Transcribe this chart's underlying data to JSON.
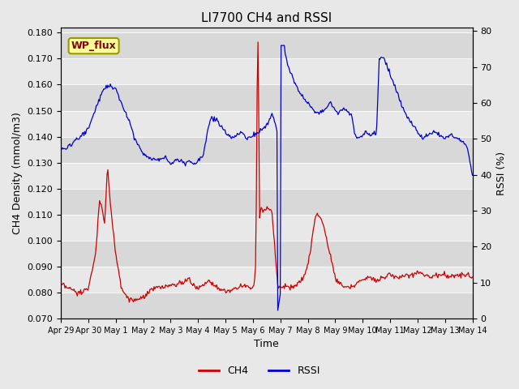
{
  "title": "LI7700 CH4 and RSSI",
  "xlabel": "Time",
  "ylabel_left": "CH4 Density (mmol/m3)",
  "ylabel_right": "RSSI (%)",
  "annotation": "WP_flux",
  "ylim_left": [
    0.07,
    0.182
  ],
  "ylim_right": [
    0,
    81
  ],
  "ch4_color": "#cc0000",
  "rssi_color": "#0000cc",
  "fig_facecolor": "#e8e8e8",
  "ax_facecolor": "#e0e0e0",
  "grid_color": "#ffffff",
  "x_tick_labels": [
    "Apr 29",
    "Apr 30",
    "May 1",
    "May 2",
    "May 3",
    "May 4",
    "May 5",
    "May 6",
    "May 7",
    "May 8",
    "May 9",
    "May 10",
    "May 11",
    "May 12",
    "May 13",
    "May 14"
  ],
  "x_tick_positions": [
    0,
    1,
    2,
    3,
    4,
    5,
    6,
    7,
    8,
    9,
    10,
    11,
    12,
    13,
    14,
    15
  ],
  "rssi_knots_x": [
    0,
    0.3,
    0.6,
    0.9,
    1.0,
    1.1,
    1.3,
    1.5,
    1.7,
    2.0,
    2.2,
    2.5,
    2.7,
    3.0,
    3.2,
    3.5,
    3.8,
    4.0,
    4.2,
    4.4,
    4.5,
    4.7,
    4.9,
    5.0,
    5.2,
    5.4,
    5.5,
    5.7,
    5.9,
    6.0,
    6.2,
    6.4,
    6.6,
    6.8,
    7.0,
    7.2,
    7.4,
    7.5,
    7.6,
    7.65,
    7.7,
    7.75,
    7.8,
    7.85,
    7.9,
    8.0,
    8.05,
    8.1,
    8.15,
    8.2,
    8.3,
    8.5,
    8.7,
    9.0,
    9.2,
    9.4,
    9.6,
    9.8,
    10.0,
    10.1,
    10.2,
    10.4,
    10.6,
    10.7,
    10.8,
    11.0,
    11.1,
    11.3,
    11.4,
    11.5,
    11.6,
    11.7,
    11.8,
    12.0,
    12.2,
    12.5,
    12.7,
    13.0,
    13.2,
    13.4,
    13.6,
    13.8,
    14.0,
    14.2,
    14.5,
    14.8,
    15.0
  ],
  "rssi_knots_y": [
    47,
    48,
    50,
    52,
    53,
    55,
    59,
    63,
    65,
    64,
    60,
    55,
    50,
    46,
    45,
    44,
    45,
    43,
    44,
    44,
    43,
    44,
    43,
    44,
    46,
    54,
    56,
    55,
    53,
    52,
    50,
    51,
    52,
    50,
    51,
    52,
    53,
    54,
    55,
    56,
    57,
    56,
    55,
    53,
    51,
    2,
    76,
    76,
    75,
    73,
    70,
    66,
    63,
    60,
    58,
    57,
    58,
    60,
    58,
    57,
    58,
    58,
    57,
    52,
    50,
    51,
    52,
    51,
    52,
    51,
    72,
    73,
    72,
    68,
    64,
    58,
    55,
    52,
    50,
    51,
    52,
    51,
    50,
    51,
    50,
    48,
    40
  ],
  "ch4_knots_x": [
    0,
    0.2,
    0.4,
    0.6,
    0.8,
    1.0,
    1.1,
    1.2,
    1.3,
    1.35,
    1.4,
    1.45,
    1.5,
    1.55,
    1.6,
    1.7,
    1.8,
    2.0,
    2.2,
    2.5,
    2.8,
    3.0,
    3.2,
    3.5,
    3.8,
    4.0,
    4.2,
    4.5,
    4.6,
    4.65,
    4.7,
    4.75,
    4.8,
    4.9,
    5.0,
    5.1,
    5.2,
    5.3,
    5.4,
    5.5,
    5.7,
    6.0,
    6.2,
    6.5,
    6.7,
    6.9,
    7.0,
    7.05,
    7.1,
    7.15,
    7.2,
    7.25,
    7.3,
    7.4,
    7.5,
    7.7,
    7.9,
    8.0,
    8.1,
    8.15,
    8.2,
    8.25,
    8.3,
    8.4,
    8.5,
    8.6,
    8.7,
    8.8,
    8.9,
    9.0,
    9.1,
    9.2,
    9.3,
    9.4,
    9.5,
    9.6,
    9.8,
    10.0,
    10.2,
    10.5,
    10.7,
    11.0,
    11.2,
    11.5,
    11.8,
    12.0,
    12.2,
    12.5,
    12.8,
    13.0,
    13.2,
    13.5,
    13.8,
    14.0,
    14.3,
    14.6,
    15.0
  ],
  "ch4_knots_y": [
    0.083,
    0.082,
    0.081,
    0.08,
    0.08,
    0.082,
    0.086,
    0.092,
    0.098,
    0.108,
    0.115,
    0.115,
    0.113,
    0.109,
    0.107,
    0.129,
    0.115,
    0.095,
    0.082,
    0.077,
    0.077,
    0.078,
    0.08,
    0.082,
    0.082,
    0.083,
    0.083,
    0.084,
    0.085,
    0.086,
    0.085,
    0.084,
    0.083,
    0.082,
    0.082,
    0.082,
    0.083,
    0.084,
    0.085,
    0.084,
    0.082,
    0.08,
    0.081,
    0.082,
    0.083,
    0.082,
    0.082,
    0.084,
    0.088,
    0.092,
    0.1,
    0.11,
    0.113,
    0.111,
    0.113,
    0.111,
    0.083,
    0.082,
    0.082,
    0.083,
    0.082,
    0.083,
    0.082,
    0.082,
    0.082,
    0.083,
    0.084,
    0.085,
    0.087,
    0.091,
    0.096,
    0.105,
    0.11,
    0.11,
    0.108,
    0.105,
    0.095,
    0.086,
    0.083,
    0.082,
    0.083,
    0.085,
    0.086,
    0.085,
    0.086,
    0.087,
    0.086,
    0.086,
    0.087,
    0.088,
    0.087,
    0.086,
    0.087,
    0.087,
    0.086,
    0.087,
    0.086
  ]
}
